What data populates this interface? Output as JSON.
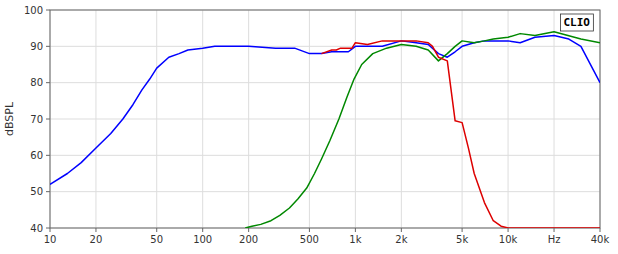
{
  "chart_data": {
    "type": "line",
    "log": "x",
    "grid": true,
    "xlim": [
      10,
      40000
    ],
    "ylim": [
      40,
      100
    ],
    "y_label": "dBSPL",
    "annotations": [
      {
        "text": "CLIO"
      }
    ],
    "xticks": [
      10,
      20,
      50,
      100,
      200,
      500,
      {
        "value": 1000,
        "label": "1k"
      },
      {
        "value": 2000,
        "label": "2k"
      },
      {
        "value": 5000,
        "label": "5k"
      },
      {
        "value": 10000,
        "label": "10k"
      },
      {
        "value": 20000,
        "label": "Hz"
      },
      {
        "value": 40000,
        "label": "40k"
      }
    ],
    "yticks": [
      40,
      50,
      60,
      70,
      80,
      90,
      100
    ],
    "series": [
      {
        "color": "#0000ff",
        "x": [
          10,
          13,
          16,
          20,
          25,
          30,
          35,
          40,
          45,
          50,
          60,
          70,
          80,
          100,
          120,
          150,
          200,
          300,
          400,
          500,
          600,
          700,
          800,
          900,
          1000,
          1200,
          1500,
          2000,
          2500,
          3000,
          3500,
          4000,
          4500,
          5000,
          6000,
          7000,
          8000,
          10000,
          12000,
          15000,
          20000,
          25000,
          30000,
          40000
        ],
        "values": [
          52,
          55,
          58,
          62,
          66,
          70,
          74,
          78,
          81,
          84,
          87,
          88,
          89,
          89.5,
          90,
          90,
          90,
          89.5,
          89.5,
          88,
          88,
          88.5,
          88.5,
          88.5,
          90,
          90,
          90,
          91.5,
          91,
          90.5,
          88,
          87,
          88.5,
          90,
          91,
          91.5,
          91.5,
          91.5,
          91,
          92.5,
          93,
          92,
          90,
          80
        ]
      },
      {
        "color": "#008800",
        "x": [
          190,
          210,
          240,
          280,
          320,
          370,
          420,
          480,
          540,
          600,
          680,
          780,
          880,
          980,
          1100,
          1300,
          1600,
          2000,
          2500,
          3000,
          3500,
          4000,
          4500,
          5000,
          6000,
          7000,
          8000,
          10000,
          12000,
          15000,
          20000,
          30000,
          40000
        ],
        "values": [
          40,
          40.5,
          41,
          42,
          43.5,
          45.5,
          48,
          51,
          55,
          59,
          64,
          70,
          76,
          81,
          85,
          88,
          89.5,
          90.5,
          90,
          89,
          86,
          88,
          90,
          91.5,
          91,
          91.5,
          92,
          92.5,
          93.5,
          93,
          94,
          92,
          91
        ]
      },
      {
        "color": "#dd0000",
        "x": [
          600,
          700,
          750,
          800,
          850,
          900,
          950,
          1000,
          1200,
          1500,
          2000,
          2500,
          3000,
          3200,
          3500,
          4000,
          4500,
          5000,
          5500,
          6000,
          7000,
          8000,
          9000,
          10000,
          15000,
          40000
        ],
        "values": [
          88,
          89,
          89,
          89.5,
          89.5,
          89.5,
          89.5,
          91,
          90.5,
          91.5,
          91.5,
          91.5,
          91,
          90,
          87,
          86,
          69.5,
          69,
          62,
          55,
          47,
          42,
          40.5,
          40,
          40,
          40
        ]
      }
    ]
  }
}
